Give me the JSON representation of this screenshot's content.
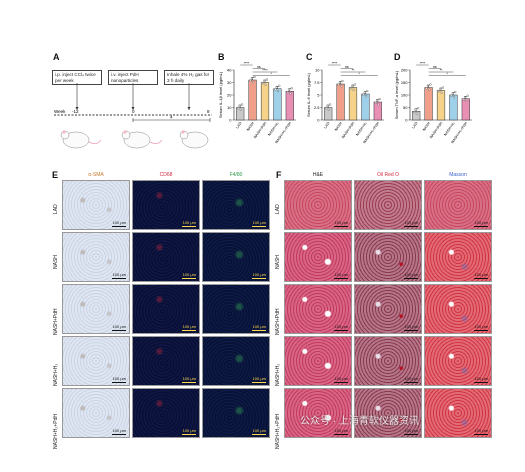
{
  "panel_a": {
    "letter": "A",
    "steps": [
      "i.p. inject CCl₄ twice per week",
      "i.v. inject PdH nanoparticles",
      "Inhale 4% H₂ gas for 3 h daily"
    ],
    "timeline_label": "Week",
    "ticks": [
      "-12",
      "0",
      "4",
      "8"
    ]
  },
  "chart_data": [
    {
      "type": "bar",
      "panel": "B",
      "ylabel": "Serum IL-1β level (pg/mL)",
      "categories": [
        "LAD",
        "NASH",
        "NASH+PdH",
        "NASH+H₂",
        "NASH+H₂+PdH"
      ],
      "values": [
        10,
        32,
        30,
        25,
        23
      ],
      "ylim": [
        0,
        40
      ],
      "yticks": [
        0,
        10,
        20,
        30,
        40
      ],
      "colors": [
        "#c9c9c9",
        "#f0a08a",
        "#f6d38a",
        "#9ed0ea",
        "#e88fb4"
      ],
      "significance": [
        "****",
        "ns",
        "****",
        "*"
      ]
    },
    {
      "type": "bar",
      "panel": "C",
      "ylabel": "Serum IL-6 level (pg/mL)",
      "categories": [
        "LAD",
        "NASH",
        "NASH+PdH",
        "NASH+H₂",
        "NASH+H₂+PdH"
      ],
      "values": [
        2.5,
        7.2,
        6.5,
        5.2,
        3.6
      ],
      "ylim": [
        0,
        10
      ],
      "yticks": [
        0,
        2.5,
        5,
        7.5,
        10
      ],
      "colors": [
        "#c9c9c9",
        "#f0a08a",
        "#f6d38a",
        "#9ed0ea",
        "#e88fb4"
      ],
      "significance": [
        "****",
        "ns",
        "**",
        "*"
      ]
    },
    {
      "type": "bar",
      "panel": "D",
      "ylabel": "Serum TNF-α level (pg/mL)",
      "categories": [
        "LAD",
        "NASH",
        "NASH+PdH",
        "NASH+H₂",
        "NASH+H₂+PdH"
      ],
      "values": [
        35,
        130,
        118,
        100,
        85
      ],
      "ylim": [
        0,
        200
      ],
      "yticks": [
        0,
        50,
        100,
        150,
        200
      ],
      "colors": [
        "#c9c9c9",
        "#f0a08a",
        "#f6d38a",
        "#9ed0ea",
        "#e88fb4"
      ],
      "significance": [
        "****",
        "ns",
        "**",
        "*"
      ]
    }
  ],
  "panel_e": {
    "letter": "E",
    "columns": [
      "α-SMA",
      "CD68",
      "F4/80"
    ],
    "column_colors": [
      "#c8782a",
      "#d4283c",
      "#2a9a46"
    ]
  },
  "panel_f": {
    "letter": "F",
    "columns": [
      "H&E",
      "Oil Red O",
      "Masson"
    ],
    "column_colors": [
      "#222222",
      "#d4283c",
      "#3a5fc8"
    ]
  },
  "rows": [
    "LAD",
    "NASH",
    "NASH+PdH",
    "NASH+H₂",
    "NASH+H₂+PdH"
  ],
  "scale_bar": "100 μm",
  "watermark": "公众号 · 上海青软仪器资讯"
}
